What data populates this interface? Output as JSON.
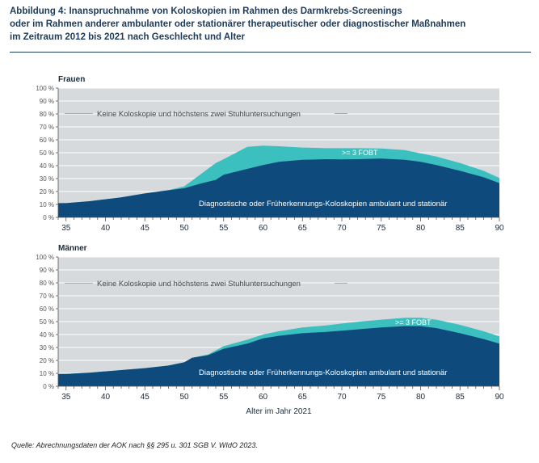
{
  "title_lines": [
    "Abbildung 4: Inanspruchnahme von Koloskopien im Rahmen des Darmkrebs-Screenings",
    "oder im Rahmen anderer ambulanter oder stationärer therapeutischer oder diagnostischer Maßnahmen",
    "im Zeitraum 2012 bis 2021 nach Geschlecht und Alter"
  ],
  "source": "Quelle: Abrechnungsdaten der AOK nach §§ 295 u. 301 SGB V. WIdO 2023.",
  "colors": {
    "background_area": "#d6dadd",
    "fobt": "#3bbfbf",
    "koloskopie": "#0e4b7c",
    "gridline": "#ffffff",
    "axis": "#555555"
  },
  "chart_data": [
    {
      "type": "area",
      "stacked": true,
      "title": "Frauen",
      "xlabel": "",
      "x_ticks": [
        35,
        40,
        45,
        50,
        55,
        60,
        65,
        70,
        75,
        80,
        85,
        90
      ],
      "y_ticks": [
        "0 %",
        "10 %",
        "20 %",
        "30 %",
        "40 %",
        "50 %",
        "60 %",
        "70 %",
        "80 %",
        "90 %",
        "100 %"
      ],
      "xlim": [
        34,
        90
      ],
      "ylim": [
        0,
        100
      ],
      "x": [
        34,
        35,
        38,
        40,
        42,
        45,
        48,
        50,
        52,
        54,
        55,
        58,
        60,
        62,
        65,
        68,
        70,
        72,
        75,
        78,
        80,
        82,
        85,
        88,
        90
      ],
      "series": [
        {
          "name": "Diagnostische oder Früherkennungs-Koloskopien ambulant und stationär",
          "color": "#0e4b7c",
          "values": [
            11,
            11,
            12.5,
            14,
            15.5,
            18.5,
            21,
            22.5,
            26,
            29,
            33,
            37.5,
            40.5,
            43,
            44.5,
            45,
            44.8,
            45,
            45.5,
            44.5,
            43,
            40.5,
            36,
            31,
            26.5
          ]
        },
        {
          "name": ">= 3 FOBT",
          "color": "#3bbfbf",
          "values": [
            0,
            0,
            0,
            0,
            0,
            0,
            0,
            1.5,
            7,
            13,
            12,
            17,
            15,
            12,
            9.5,
            8.5,
            8.7,
            8.5,
            7.8,
            7.5,
            6.5,
            6.5,
            6,
            5,
            4
          ]
        },
        {
          "name": "Keine Koloskopie und höchstens zwei Stuhluntersuchungen",
          "color": "#d6dadd",
          "values": "remainder to 100 %"
        }
      ]
    },
    {
      "type": "area",
      "stacked": true,
      "title": "Männer",
      "xlabel": "Alter im Jahr 2021",
      "x_ticks": [
        35,
        40,
        45,
        50,
        55,
        60,
        65,
        70,
        75,
        80,
        85,
        90
      ],
      "y_ticks": [
        "0 %",
        "10 %",
        "20 %",
        "30 %",
        "40 %",
        "50 %",
        "60 %",
        "70 %",
        "80 %",
        "90 %",
        "100 %"
      ],
      "xlim": [
        34,
        90
      ],
      "ylim": [
        0,
        100
      ],
      "x": [
        34,
        35,
        38,
        40,
        42,
        45,
        48,
        50,
        51,
        53,
        55,
        58,
        60,
        62,
        65,
        68,
        70,
        72,
        75,
        78,
        80,
        82,
        85,
        88,
        90
      ],
      "series": [
        {
          "name": "Diagnostische oder Früherkennungs-Koloskopien ambulant und stationär",
          "color": "#0e4b7c",
          "values": [
            9.5,
            9.5,
            10.5,
            11.5,
            12.5,
            14,
            16,
            18.5,
            22,
            24,
            29,
            33,
            37,
            39,
            41,
            42,
            43,
            44,
            45.5,
            46.5,
            46.5,
            45,
            41,
            36.5,
            33
          ]
        },
        {
          "name": ">= 3 FOBT",
          "color": "#3bbfbf",
          "values": [
            0,
            0,
            0,
            0,
            0,
            0,
            0,
            0,
            0,
            0.5,
            2,
            3,
            3,
            3.5,
            4.5,
            5,
            5.5,
            5.8,
            6,
            6.5,
            6.5,
            6.5,
            6.5,
            6,
            5.5
          ]
        },
        {
          "name": "Keine Koloskopie und höchstens zwei Stuhluntersuchungen",
          "color": "#d6dadd",
          "values": "remainder to 100 %"
        }
      ]
    }
  ]
}
